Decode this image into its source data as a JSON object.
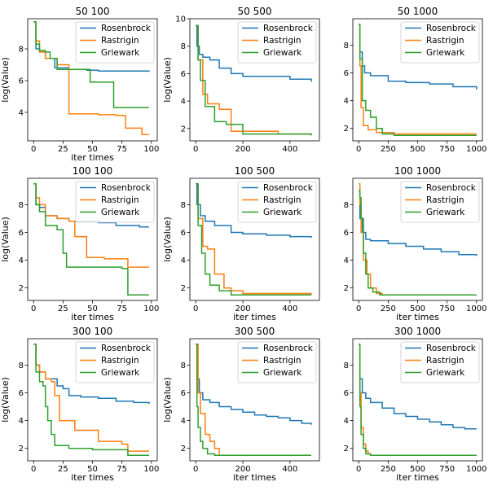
{
  "chart_data": [
    {
      "type": "line",
      "title": "50 100",
      "xlabel": "iter times",
      "ylabel": "log(Value)",
      "xlim": [
        -5,
        105
      ],
      "ylim": [
        2.2,
        9.9
      ],
      "xticks": [
        0,
        25,
        50,
        75,
        100
      ],
      "yticks": [
        4,
        6,
        8
      ],
      "legend": "top-right",
      "series": [
        {
          "name": "Rosenbrock",
          "x": [
            0,
            2,
            5,
            10,
            18,
            30,
            45,
            55,
            80,
            98
          ],
          "y": [
            9.7,
            8.0,
            7.8,
            7.4,
            6.8,
            6.7,
            6.65,
            6.6,
            6.6,
            6.55
          ]
        },
        {
          "name": "Rastrigin",
          "x": [
            0,
            2,
            5,
            10,
            20,
            30,
            55,
            70,
            78,
            92,
            98
          ],
          "y": [
            9.7,
            8.5,
            7.8,
            7.4,
            7.0,
            3.9,
            3.85,
            3.8,
            3.0,
            2.6,
            2.6
          ]
        },
        {
          "name": "Griewark",
          "x": [
            0,
            2,
            5,
            8,
            10,
            14,
            20,
            48,
            68,
            98
          ],
          "y": [
            9.7,
            8.3,
            7.9,
            7.9,
            7.8,
            7.4,
            6.7,
            5.9,
            4.3,
            4.3
          ]
        }
      ]
    },
    {
      "type": "line",
      "title": "50 500",
      "xlabel": "",
      "ylabel": "log(Value)",
      "xlim": [
        -25,
        525
      ],
      "ylim": [
        1.1,
        10.0
      ],
      "xticks": [
        0,
        200,
        400
      ],
      "yticks": [
        2,
        4,
        6,
        8,
        10
      ],
      "legend": "top-right",
      "series": [
        {
          "name": "Rosenbrock",
          "x": [
            0,
            5,
            15,
            30,
            60,
            100,
            150,
            200,
            300,
            400,
            490
          ],
          "y": [
            9.5,
            8.0,
            7.4,
            7.2,
            7.0,
            6.4,
            6.0,
            5.8,
            5.8,
            5.6,
            5.4
          ]
        },
        {
          "name": "Rastrigin",
          "x": [
            0,
            10,
            30,
            50,
            100,
            150,
            250,
            350,
            490
          ],
          "y": [
            9.5,
            7.0,
            4.5,
            3.8,
            3.4,
            1.8,
            1.8,
            1.6,
            1.5
          ]
        },
        {
          "name": "Griewark",
          "x": [
            0,
            10,
            20,
            40,
            80,
            130,
            200,
            490
          ],
          "y": [
            9.5,
            7.0,
            5.5,
            3.6,
            2.5,
            2.3,
            1.6,
            1.5
          ]
        }
      ]
    },
    {
      "type": "line",
      "title": "50 1000",
      "xlabel": "",
      "ylabel": "",
      "xlim": [
        -50,
        1050
      ],
      "ylim": [
        1.1,
        9.9
      ],
      "xticks": [
        0,
        250,
        500,
        750,
        1000
      ],
      "yticks": [
        2,
        4,
        6,
        8
      ],
      "legend": "top-right",
      "series": [
        {
          "name": "Rosenbrock",
          "x": [
            0,
            10,
            30,
            50,
            100,
            250,
            400,
            600,
            800,
            1000
          ],
          "y": [
            9.5,
            7.5,
            6.5,
            6.0,
            5.8,
            5.4,
            5.3,
            5.2,
            5.0,
            4.8
          ]
        },
        {
          "name": "Rastrigin",
          "x": [
            0,
            10,
            20,
            40,
            80,
            150,
            300,
            600,
            1000
          ],
          "y": [
            9.5,
            6.5,
            3.5,
            2.2,
            1.9,
            1.7,
            1.6,
            1.6,
            1.6
          ]
        },
        {
          "name": "Griewark",
          "x": [
            0,
            10,
            30,
            60,
            100,
            150,
            200,
            300,
            1000
          ],
          "y": [
            9.5,
            7.0,
            4.0,
            3.3,
            2.8,
            2.0,
            1.6,
            1.5,
            1.5
          ]
        }
      ]
    },
    {
      "type": "line",
      "title": "100 100",
      "xlabel": "iter times",
      "ylabel": "log(Value)",
      "xlim": [
        -5,
        105
      ],
      "ylim": [
        1.1,
        9.9
      ],
      "xticks": [
        0,
        25,
        50,
        75,
        100
      ],
      "yticks": [
        2,
        4,
        6,
        8
      ],
      "legend": "top-right",
      "series": [
        {
          "name": "Rosenbrock",
          "x": [
            0,
            2,
            5,
            10,
            20,
            30,
            40,
            55,
            70,
            90,
            98
          ],
          "y": [
            9.5,
            8.0,
            7.8,
            7.2,
            7.0,
            6.8,
            6.8,
            6.7,
            6.5,
            6.4,
            6.4
          ]
        },
        {
          "name": "Rastrigin",
          "x": [
            0,
            2,
            5,
            10,
            20,
            30,
            35,
            45,
            60,
            75,
            80,
            98
          ],
          "y": [
            9.5,
            8.5,
            8.0,
            7.2,
            7.0,
            6.8,
            5.7,
            4.2,
            4.1,
            4.1,
            3.5,
            3.5
          ]
        },
        {
          "name": "Griewark",
          "x": [
            0,
            2,
            5,
            10,
            20,
            25,
            28,
            48,
            75,
            80,
            98
          ],
          "y": [
            9.5,
            8.0,
            7.5,
            6.5,
            6.2,
            4.5,
            3.5,
            3.5,
            3.4,
            1.5,
            1.5
          ]
        }
      ]
    },
    {
      "type": "line",
      "title": "100 500",
      "xlabel": "iter times",
      "ylabel": "log(Value)",
      "xlim": [
        -25,
        525
      ],
      "ylim": [
        1.1,
        9.9
      ],
      "xticks": [
        0,
        200,
        400
      ],
      "yticks": [
        2,
        4,
        6,
        8
      ],
      "legend": "top-right",
      "series": [
        {
          "name": "Rosenbrock",
          "x": [
            0,
            5,
            20,
            40,
            80,
            150,
            200,
            300,
            400,
            490
          ],
          "y": [
            9.5,
            8.0,
            7.2,
            6.8,
            6.5,
            6.0,
            5.9,
            5.8,
            5.7,
            5.6
          ]
        },
        {
          "name": "Rastrigin",
          "x": [
            0,
            10,
            30,
            50,
            80,
            120,
            150,
            200,
            300,
            490
          ],
          "y": [
            9.5,
            7.0,
            5.0,
            4.8,
            3.0,
            2.0,
            1.8,
            1.6,
            1.6,
            1.5
          ]
        },
        {
          "name": "Griewark",
          "x": [
            0,
            10,
            25,
            40,
            60,
            100,
            150,
            490
          ],
          "y": [
            9.5,
            6.5,
            4.5,
            3.0,
            2.2,
            1.8,
            1.5,
            1.5
          ]
        }
      ]
    },
    {
      "type": "line",
      "title": "100 1000",
      "xlabel": "iter times",
      "ylabel": "",
      "xlim": [
        -50,
        1050
      ],
      "ylim": [
        1.1,
        9.9
      ],
      "xticks": [
        0,
        250,
        500,
        750,
        1000
      ],
      "yticks": [
        2,
        4,
        6,
        8
      ],
      "legend": "top-right",
      "series": [
        {
          "name": "Rosenbrock",
          "x": [
            0,
            10,
            30,
            60,
            100,
            250,
            400,
            550,
            700,
            850,
            1000
          ],
          "y": [
            9.0,
            7.0,
            6.0,
            5.5,
            5.4,
            5.2,
            5.0,
            4.8,
            4.6,
            4.4,
            4.3
          ]
        },
        {
          "name": "Rastrigin",
          "x": [
            0,
            10,
            20,
            40,
            70,
            100,
            150,
            200,
            300,
            1000
          ],
          "y": [
            9.5,
            8.0,
            6.0,
            4.0,
            3.0,
            2.0,
            1.6,
            1.5,
            1.5,
            1.5
          ]
        },
        {
          "name": "Griewark",
          "x": [
            0,
            10,
            20,
            40,
            60,
            80,
            120,
            180,
            1000
          ],
          "y": [
            9.0,
            8.5,
            7.0,
            4.5,
            3.0,
            2.0,
            1.7,
            1.5,
            1.5
          ]
        }
      ]
    },
    {
      "type": "line",
      "title": "300 100",
      "xlabel": "iter times",
      "ylabel": "log(Value)",
      "xlim": [
        -5,
        105
      ],
      "ylim": [
        1.1,
        9.9
      ],
      "xticks": [
        0,
        25,
        50,
        75,
        100
      ],
      "yticks": [
        2,
        4,
        6,
        8
      ],
      "legend": "top-right",
      "series": [
        {
          "name": "Rosenbrock",
          "x": [
            0,
            2,
            5,
            10,
            20,
            25,
            30,
            40,
            55,
            70,
            85,
            98
          ],
          "y": [
            9.5,
            8.0,
            7.5,
            7.0,
            6.5,
            6.3,
            5.8,
            5.7,
            5.6,
            5.4,
            5.3,
            5.2
          ]
        },
        {
          "name": "Rastrigin",
          "x": [
            0,
            2,
            5,
            10,
            15,
            18,
            22,
            25,
            35,
            50,
            55,
            75,
            80,
            98
          ],
          "y": [
            9.5,
            8.0,
            7.5,
            7.0,
            6.8,
            5.8,
            4.0,
            4.0,
            3.3,
            3.3,
            2.5,
            2.3,
            1.8,
            1.8
          ]
        },
        {
          "name": "Griewark",
          "x": [
            0,
            2,
            5,
            8,
            10,
            12,
            15,
            18,
            30,
            50,
            80,
            98
          ],
          "y": [
            9.5,
            7.5,
            6.8,
            6.5,
            5.0,
            4.0,
            3.0,
            2.2,
            2.0,
            1.9,
            1.5,
            1.5
          ]
        }
      ]
    },
    {
      "type": "line",
      "title": "300 500",
      "xlabel": "iter times",
      "ylabel": "log(Value)",
      "xlim": [
        -25,
        525
      ],
      "ylim": [
        1.1,
        9.9
      ],
      "xticks": [
        0,
        200,
        400
      ],
      "yticks": [
        2,
        4,
        6,
        8
      ],
      "legend": "top-right",
      "series": [
        {
          "name": "Rosenbrock",
          "x": [
            0,
            5,
            15,
            30,
            60,
            100,
            150,
            200,
            250,
            300,
            350,
            400,
            450,
            490
          ],
          "y": [
            9.5,
            7.0,
            6.0,
            5.5,
            5.3,
            5.0,
            4.8,
            4.6,
            4.4,
            4.3,
            4.2,
            4.0,
            3.8,
            3.7
          ]
        },
        {
          "name": "Rastrigin",
          "x": [
            0,
            10,
            20,
            40,
            60,
            80,
            100,
            490
          ],
          "y": [
            9.5,
            6.0,
            4.5,
            3.0,
            2.5,
            2.0,
            1.5,
            1.5
          ]
        },
        {
          "name": "Griewark",
          "x": [
            0,
            5,
            10,
            20,
            30,
            50,
            80,
            490
          ],
          "y": [
            9.5,
            5.0,
            3.5,
            2.5,
            2.0,
            1.6,
            1.5,
            1.5
          ]
        }
      ]
    },
    {
      "type": "line",
      "title": "300 1000",
      "xlabel": "iter times",
      "ylabel": "",
      "xlim": [
        -50,
        1050
      ],
      "ylim": [
        1.1,
        9.9
      ],
      "xticks": [
        0,
        250,
        500,
        750,
        1000
      ],
      "yticks": [
        2,
        4,
        6,
        8
      ],
      "legend": "top-right",
      "series": [
        {
          "name": "Rosenbrock",
          "x": [
            0,
            10,
            30,
            60,
            100,
            200,
            300,
            400,
            500,
            600,
            700,
            800,
            900,
            1000
          ],
          "y": [
            9.5,
            7.0,
            6.0,
            5.6,
            5.3,
            4.9,
            4.5,
            4.3,
            4.1,
            3.9,
            3.7,
            3.5,
            3.4,
            3.4
          ]
        },
        {
          "name": "Rastrigin",
          "x": [
            0,
            10,
            20,
            40,
            60,
            80,
            100,
            1000
          ],
          "y": [
            9.5,
            6.0,
            3.5,
            2.3,
            1.8,
            1.6,
            1.5,
            1.5
          ]
        },
        {
          "name": "Griewark",
          "x": [
            0,
            10,
            20,
            40,
            60,
            100,
            1000
          ],
          "y": [
            9.5,
            5.0,
            3.0,
            2.0,
            1.6,
            1.5,
            1.5
          ]
        }
      ]
    }
  ],
  "colors": {
    "Rosenbrock": "#1f77b4",
    "Rastrigin": "#ff7f0e",
    "Griewark": "#2ca02c"
  }
}
